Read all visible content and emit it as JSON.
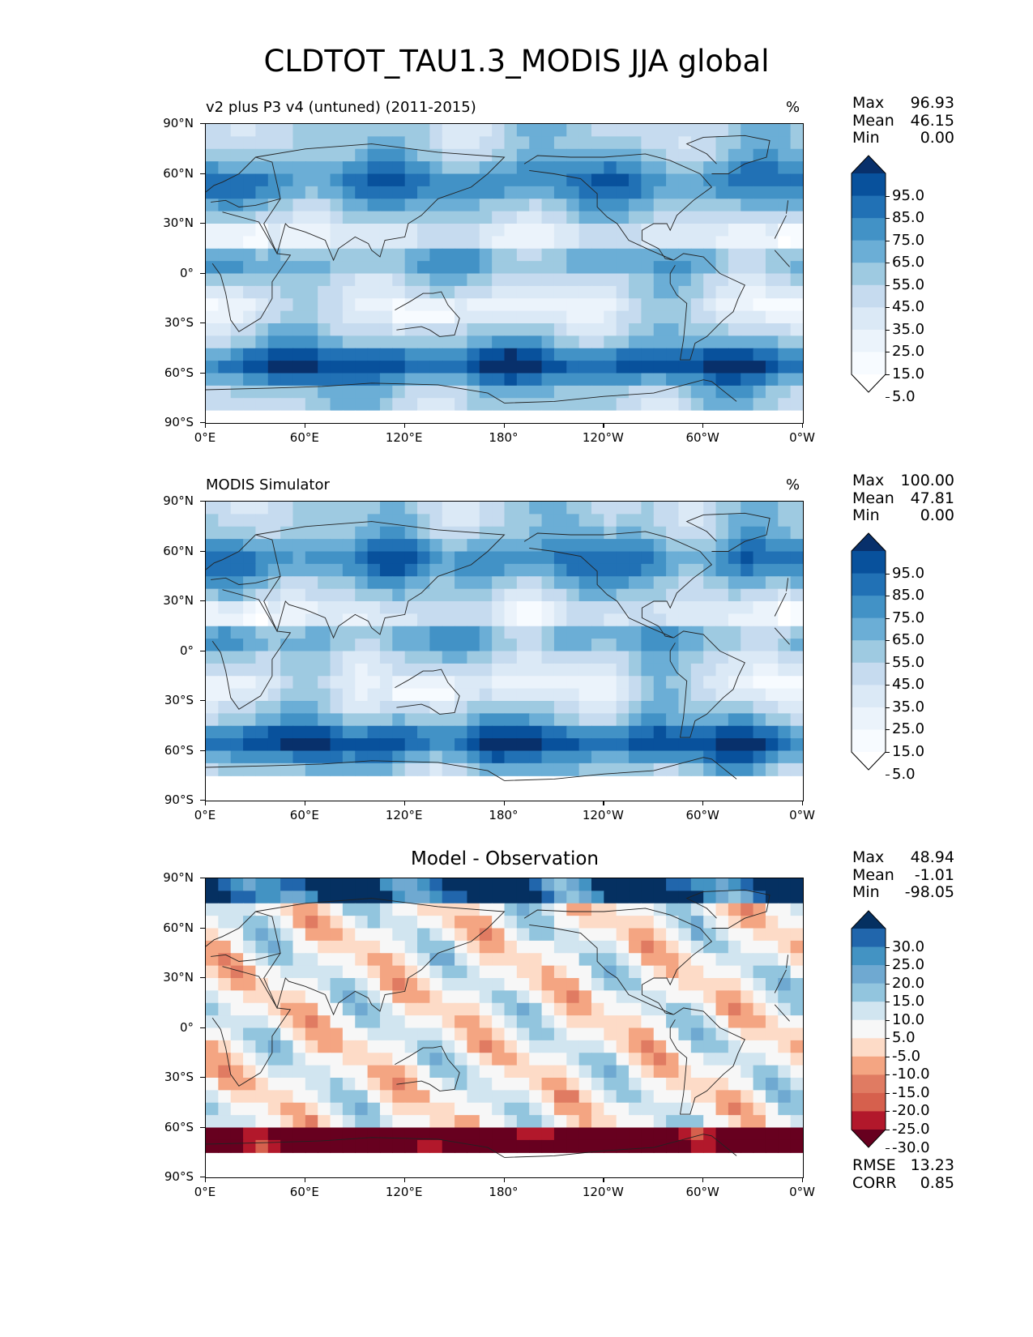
{
  "title": "CLDTOT_TAU1.3_MODIS JJA global",
  "lat_ticks": [
    "90°N",
    "60°N",
    "30°N",
    "0°",
    "30°S",
    "60°S",
    "90°S"
  ],
  "lon_ticks": [
    "0°E",
    "60°E",
    "120°E",
    "180°",
    "120°W",
    "60°W",
    "0°W"
  ],
  "panels": [
    {
      "title_left": "v2 plus P3 v4 (untuned) (2011-2015)",
      "title_right": "%",
      "title_center": "",
      "stats": [
        {
          "label": "Max",
          "value": "96.93"
        },
        {
          "label": "Mean",
          "value": "46.15"
        },
        {
          "label": "Min",
          "value": "0.00"
        }
      ],
      "colorbar_labels": [
        "95.0",
        "85.0",
        "75.0",
        "65.0",
        "55.0",
        "45.0",
        "35.0",
        "25.0",
        "15.0",
        "5.0"
      ],
      "colorbar_colors": [
        "#08306b",
        "#08519c",
        "#2171b5",
        "#4292c6",
        "#6baed6",
        "#9ecae1",
        "#c6dbef",
        "#dbe9f6",
        "#ebf3fb",
        "#f7fbff",
        "#ffffff"
      ]
    },
    {
      "title_left": "MODIS Simulator",
      "title_right": "%",
      "title_center": "",
      "stats": [
        {
          "label": "Max",
          "value": "100.00"
        },
        {
          "label": "Mean",
          "value": "47.81"
        },
        {
          "label": "Min",
          "value": "0.00"
        }
      ],
      "colorbar_labels": [
        "95.0",
        "85.0",
        "75.0",
        "65.0",
        "55.0",
        "45.0",
        "35.0",
        "25.0",
        "15.0",
        "5.0"
      ],
      "colorbar_colors": [
        "#08306b",
        "#08519c",
        "#2171b5",
        "#4292c6",
        "#6baed6",
        "#9ecae1",
        "#c6dbef",
        "#dbe9f6",
        "#ebf3fb",
        "#f7fbff",
        "#ffffff"
      ]
    },
    {
      "title_left": "",
      "title_right": "",
      "title_center": "Model - Observation",
      "stats": [
        {
          "label": "Max",
          "value": "48.94"
        },
        {
          "label": "Mean",
          "value": "-1.01"
        },
        {
          "label": "Min",
          "value": "-98.05"
        }
      ],
      "colorbar_labels": [
        "30.0",
        "25.0",
        "20.0",
        "15.0",
        "10.0",
        "5.0",
        "-5.0",
        "-10.0",
        "-15.0",
        "-20.0",
        "-25.0",
        "-30.0"
      ],
      "colorbar_colors": [
        "#053061",
        "#2166ac",
        "#4393c3",
        "#6fa9d1",
        "#92c5de",
        "#d1e5f0",
        "#f7f7f7",
        "#fddbc7",
        "#f4a582",
        "#e07b62",
        "#d6604d",
        "#b2182b",
        "#67001f"
      ],
      "footer_stats": [
        {
          "label": "RMSE",
          "value": "13.23"
        },
        {
          "label": "CORR",
          "value": "0.85"
        }
      ]
    }
  ]
}
